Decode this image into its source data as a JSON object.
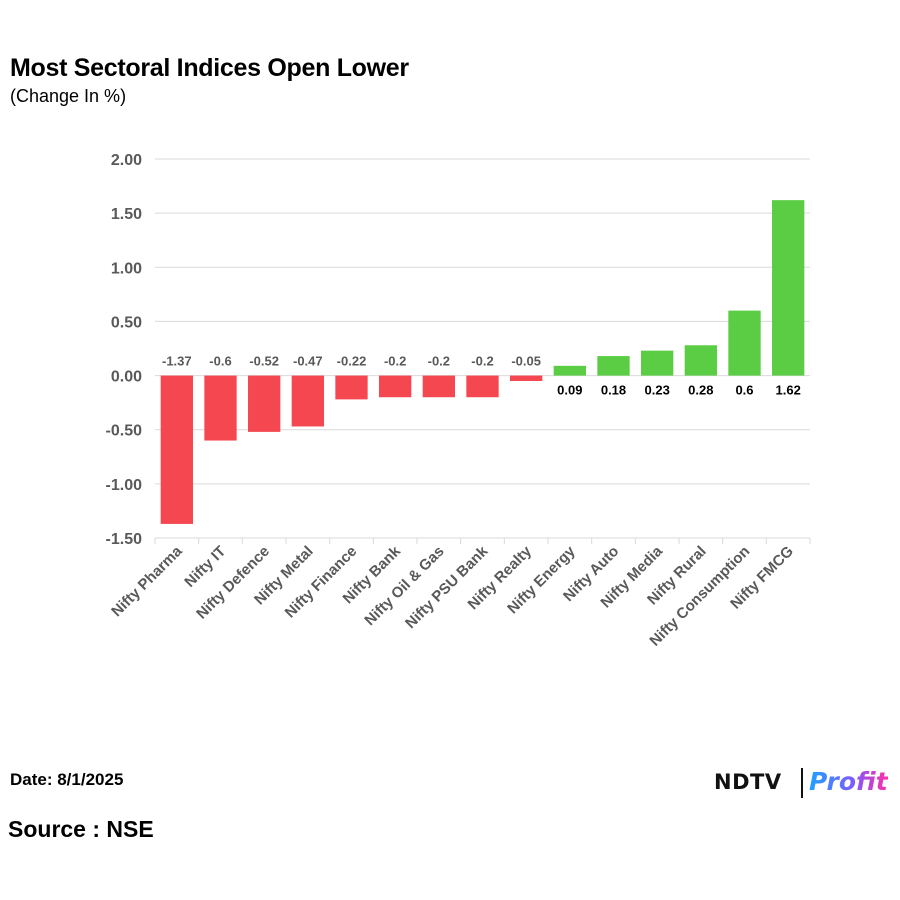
{
  "header": {
    "title": "Most Sectoral Indices Open Lower",
    "subtitle": "(Change In %)"
  },
  "footer": {
    "date": "Date: 8/1/2025",
    "source": "Source : NSE"
  },
  "logo": {
    "brand": "NDTV",
    "product": "Profit"
  },
  "colors": {
    "negative": "#f5474f",
    "positive": "#5bcd44",
    "grid": "#d9d9d9",
    "axis_text": "#595959",
    "neg_label": "#595959",
    "pos_label": "#000000"
  },
  "chart_data": {
    "type": "bar",
    "title": "Most Sectoral Indices Open Lower",
    "subtitle": "(Change In %)",
    "xlabel": "",
    "ylabel": "Change In %",
    "ylim": [
      -1.5,
      2.0
    ],
    "yticks": [
      2.0,
      1.5,
      1.0,
      0.5,
      0.0,
      -0.5,
      -1.0,
      -1.5
    ],
    "ytick_labels": [
      "2.00",
      "1.50",
      "1.00",
      "0.50",
      "0.00",
      "-0.50",
      "-1.00",
      "-1.50"
    ],
    "grid": true,
    "legend": "none",
    "categories": [
      "Nifty Pharma",
      "Nifty IT",
      "Nifty Defence",
      "Nifty Metal",
      "Nifty Finance",
      "Nifty Bank",
      "Nifty Oil & Gas",
      "Nifty PSU Bank",
      "Nifty Realty",
      "Nifty Energy",
      "Nifty Auto",
      "Nifty Media",
      "Nifty Rural",
      "Nifty Consumption",
      "Nifty FMCG"
    ],
    "values": [
      -1.37,
      -0.6,
      -0.52,
      -0.47,
      -0.22,
      -0.2,
      -0.2,
      -0.2,
      -0.05,
      0.09,
      0.18,
      0.23,
      0.28,
      0.6,
      1.62
    ],
    "value_labels": [
      "-1.37",
      "-0.6",
      "-0.52",
      "-0.47",
      "-0.22",
      "-0.2",
      "-0.2",
      "-0.2",
      "-0.05",
      "0.09",
      "0.18",
      "0.23",
      "0.28",
      "0.6",
      "1.62"
    ]
  }
}
